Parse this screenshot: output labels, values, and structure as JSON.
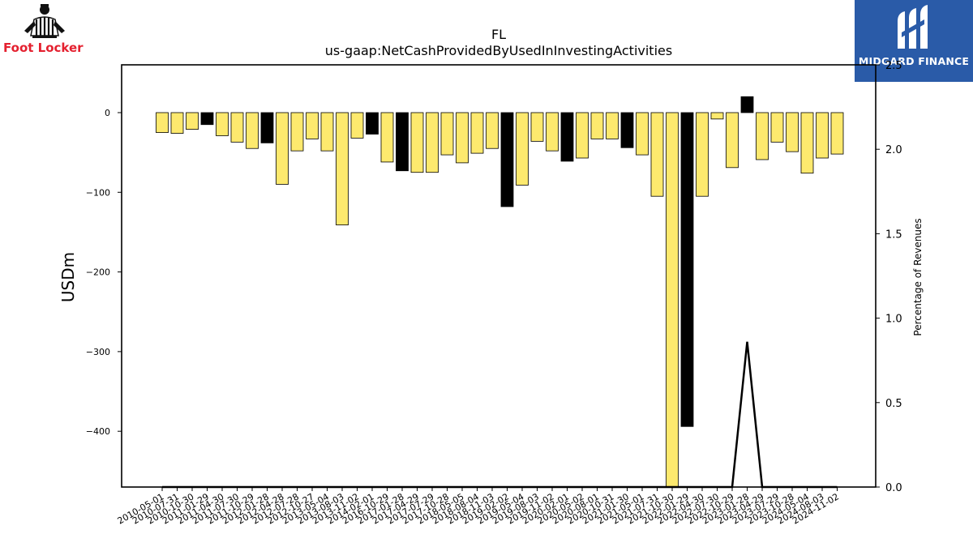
{
  "brand": {
    "name": "Foot Locker",
    "icon": "referee-logo-icon",
    "color": "#e4202f"
  },
  "watermark": {
    "name": "MIDGARD FINANCE",
    "icon": "midgard-m-logo-icon",
    "background": "#2a5ba8"
  },
  "chart_data": {
    "type": "bar",
    "title": "FL",
    "subtitle": "us-gaap:NetCashProvidedByUsedInInvestingActivities",
    "ylabel": "USDm",
    "y2label": "Percentage of Revenues",
    "ylim": [
      -470,
      60
    ],
    "y2lim": [
      0,
      2.5
    ],
    "yticks": [
      0,
      -100,
      -200,
      -300,
      -400
    ],
    "y2ticks": [
      "0.0",
      "0.5",
      "1.0",
      "1.5",
      "2.0",
      "2.5"
    ],
    "grid": false,
    "colors": {
      "typical": "#fde96e",
      "highlight": "#000000",
      "edge": "#000000",
      "line": "#000000"
    },
    "categories": [
      "2010-05-01",
      "2010-07-31",
      "2010-10-30",
      "2011-01-29",
      "2011-04-30",
      "2011-07-30",
      "2011-10-29",
      "2012-01-28",
      "2012-04-28",
      "2012-07-28",
      "2012-10-27",
      "2013-05-04",
      "2013-08-03",
      "2013-11-02",
      "2014-02-01",
      "2016-10-29",
      "2017-01-28",
      "2017-04-29",
      "2017-07-29",
      "2017-10-28",
      "2018-05-05",
      "2018-08-04",
      "2018-11-03",
      "2019-02-02",
      "2019-05-04",
      "2019-08-03",
      "2019-11-02",
      "2020-02-01",
      "2020-05-02",
      "2020-08-01",
      "2020-10-31",
      "2021-01-30",
      "2021-05-01",
      "2021-07-31",
      "2021-10-30",
      "2022-01-29",
      "2022-04-30",
      "2022-07-30",
      "2022-10-29",
      "2023-01-28",
      "2023-04-29",
      "2023-07-29",
      "2023-10-28",
      "2024-05-04",
      "2024-08-03",
      "2024-11-02"
    ],
    "values": [
      -25,
      -26,
      -21,
      -15,
      -29,
      -37,
      -45,
      -38,
      -90,
      -48,
      -33,
      -48,
      -141,
      -32,
      -27,
      -62,
      -73,
      -75,
      -75,
      -53,
      -63,
      -51,
      -45,
      -118,
      -91,
      -36,
      -48,
      -61,
      -57,
      -33,
      -33,
      -44,
      -53,
      -105,
      -470,
      -394,
      -105,
      -8,
      -69,
      20,
      -59,
      -37,
      -49,
      -76,
      -57,
      -52
    ],
    "highlight": [
      false,
      false,
      false,
      true,
      false,
      false,
      false,
      true,
      false,
      false,
      false,
      false,
      false,
      false,
      true,
      false,
      true,
      false,
      false,
      false,
      false,
      false,
      false,
      true,
      false,
      false,
      false,
      true,
      false,
      false,
      false,
      true,
      false,
      false,
      false,
      true,
      false,
      false,
      false,
      true,
      false,
      false,
      false,
      false,
      false,
      false
    ],
    "line_series": {
      "y_axis": "right",
      "values": [
        0,
        0,
        0,
        0,
        0,
        0,
        0,
        0,
        0,
        0,
        0,
        0,
        0,
        0,
        0,
        0,
        0,
        0,
        0,
        0,
        0,
        0,
        0,
        0,
        0,
        0,
        0,
        0,
        0,
        0,
        0,
        0,
        0,
        0,
        0,
        0,
        0,
        0,
        0,
        0.86,
        0,
        0,
        0,
        0,
        0,
        0
      ]
    }
  }
}
